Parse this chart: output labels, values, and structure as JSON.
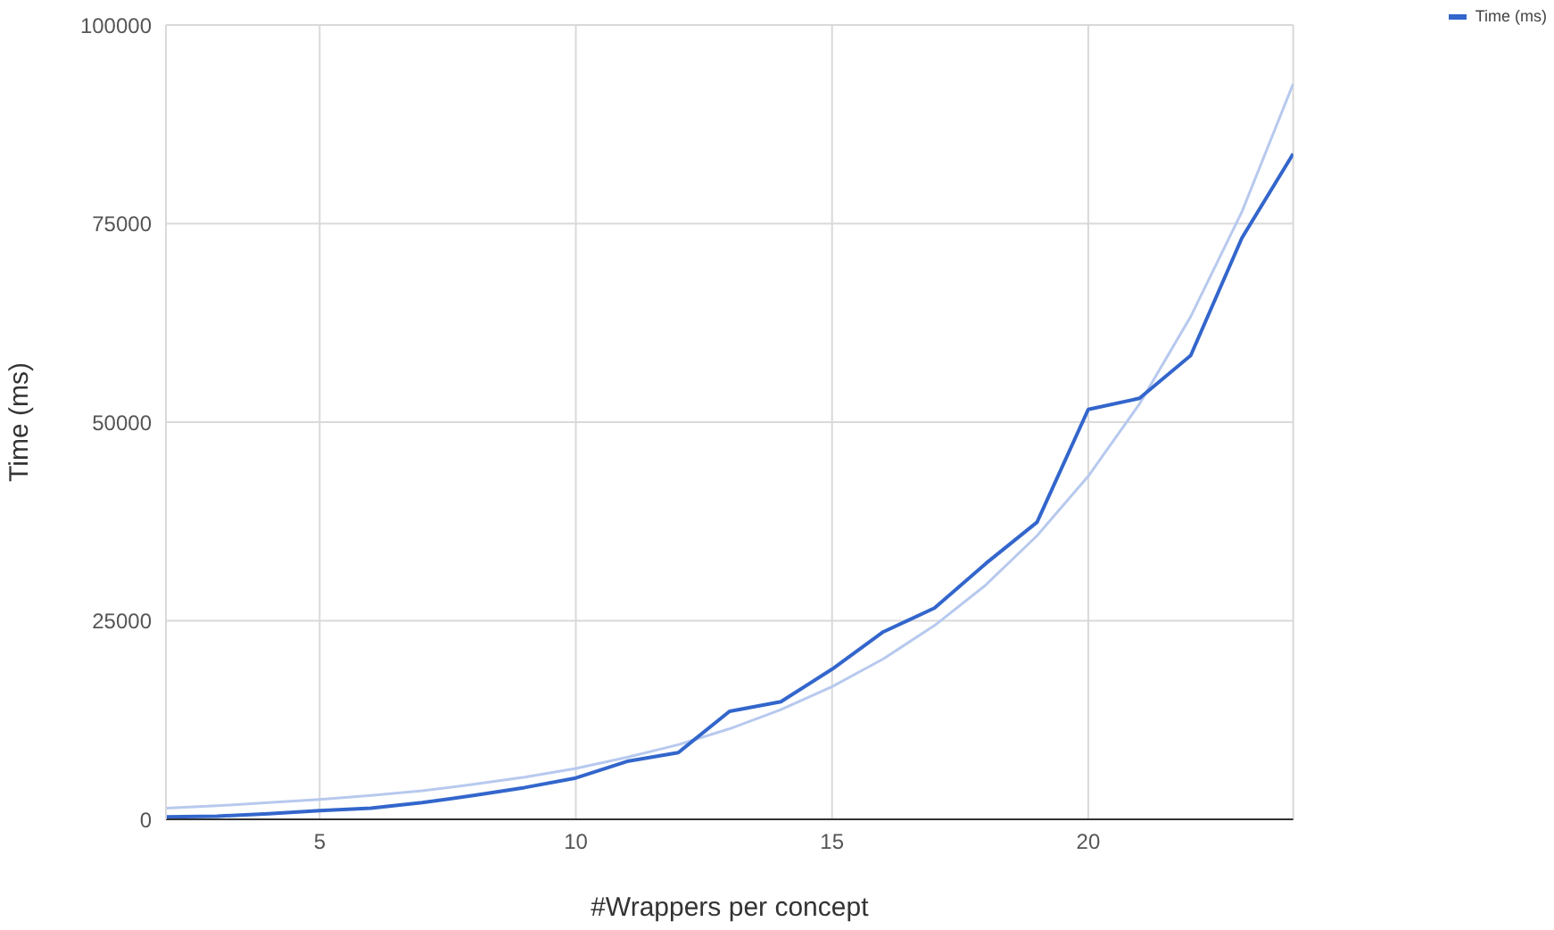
{
  "chart_data": {
    "type": "line",
    "xlabel": "#Wrappers per concept",
    "ylabel": "Time (ms)",
    "x": [
      2,
      3,
      4,
      5,
      6,
      7,
      8,
      9,
      10,
      11,
      12,
      13,
      14,
      15,
      16,
      17,
      18,
      19,
      20,
      21,
      22,
      23,
      24
    ],
    "series": [
      {
        "name": "Time (ms)",
        "color": "#3366cc",
        "values": [
          300,
          400,
          700,
          1100,
          1400,
          2100,
          3000,
          4000,
          5200,
          7300,
          8400,
          13600,
          14800,
          18900,
          23600,
          26600,
          32200,
          37400,
          51600,
          53000,
          58400,
          73200,
          83800
        ]
      },
      {
        "color": "#b7c9ee",
        "values": [
          1400,
          1700,
          2100,
          2500,
          3000,
          3600,
          4400,
          5300,
          6400,
          7800,
          9400,
          11400,
          13800,
          16700,
          20200,
          24400,
          29500,
          35700,
          43200,
          52300,
          63300,
          76500,
          92600
        ]
      }
    ],
    "xlim": [
      2,
      24
    ],
    "xticks": [
      5,
      10,
      15,
      20
    ],
    "ylim": [
      0,
      100000
    ],
    "yticks": [
      0,
      25000,
      50000,
      75000,
      100000
    ],
    "grid": true,
    "legend": "top right",
    "marker": "none",
    "line_style": "solid"
  }
}
